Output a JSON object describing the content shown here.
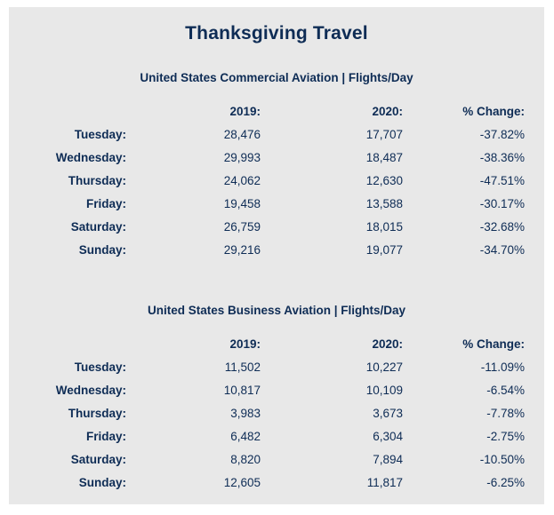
{
  "title": "Thanksgiving Travel",
  "colors": {
    "text_navy": "#0e2c55",
    "panel_bg": "#e8e8e8",
    "page_bg": "#ffffff"
  },
  "chart_data": [
    {
      "type": "table",
      "title": "United States Commercial Aviation | Flights/Day",
      "columns": {
        "day": "",
        "y2019": "2019:",
        "y2020": "2020:",
        "change": "% Change:"
      },
      "rows": [
        {
          "day": "Tuesday:",
          "y2019": "28,476",
          "y2020": "17,707",
          "change": "-37.82%"
        },
        {
          "day": "Wednesday:",
          "y2019": "29,993",
          "y2020": "18,487",
          "change": "-38.36%"
        },
        {
          "day": "Thursday:",
          "y2019": "24,062",
          "y2020": "12,630",
          "change": "-47.51%"
        },
        {
          "day": "Friday:",
          "y2019": "19,458",
          "y2020": "13,588",
          "change": "-30.17%"
        },
        {
          "day": "Saturday:",
          "y2019": "26,759",
          "y2020": "18,015",
          "change": "-32.68%"
        },
        {
          "day": "Sunday:",
          "y2019": "29,216",
          "y2020": "19,077",
          "change": "-34.70%"
        }
      ]
    },
    {
      "type": "table",
      "title": "United States Business Aviation | Flights/Day",
      "columns": {
        "day": "",
        "y2019": "2019:",
        "y2020": "2020:",
        "change": "% Change:"
      },
      "rows": [
        {
          "day": "Tuesday:",
          "y2019": "11,502",
          "y2020": "10,227",
          "change": "-11.09%"
        },
        {
          "day": "Wednesday:",
          "y2019": "10,817",
          "y2020": "10,109",
          "change": "-6.54%"
        },
        {
          "day": "Thursday:",
          "y2019": "3,983",
          "y2020": "3,673",
          "change": "-7.78%"
        },
        {
          "day": "Friday:",
          "y2019": "6,482",
          "y2020": "6,304",
          "change": "-2.75%"
        },
        {
          "day": "Saturday:",
          "y2019": "8,820",
          "y2020": "7,894",
          "change": "-10.50%"
        },
        {
          "day": "Sunday:",
          "y2019": "12,605",
          "y2020": "11,817",
          "change": "-6.25%"
        }
      ]
    }
  ]
}
